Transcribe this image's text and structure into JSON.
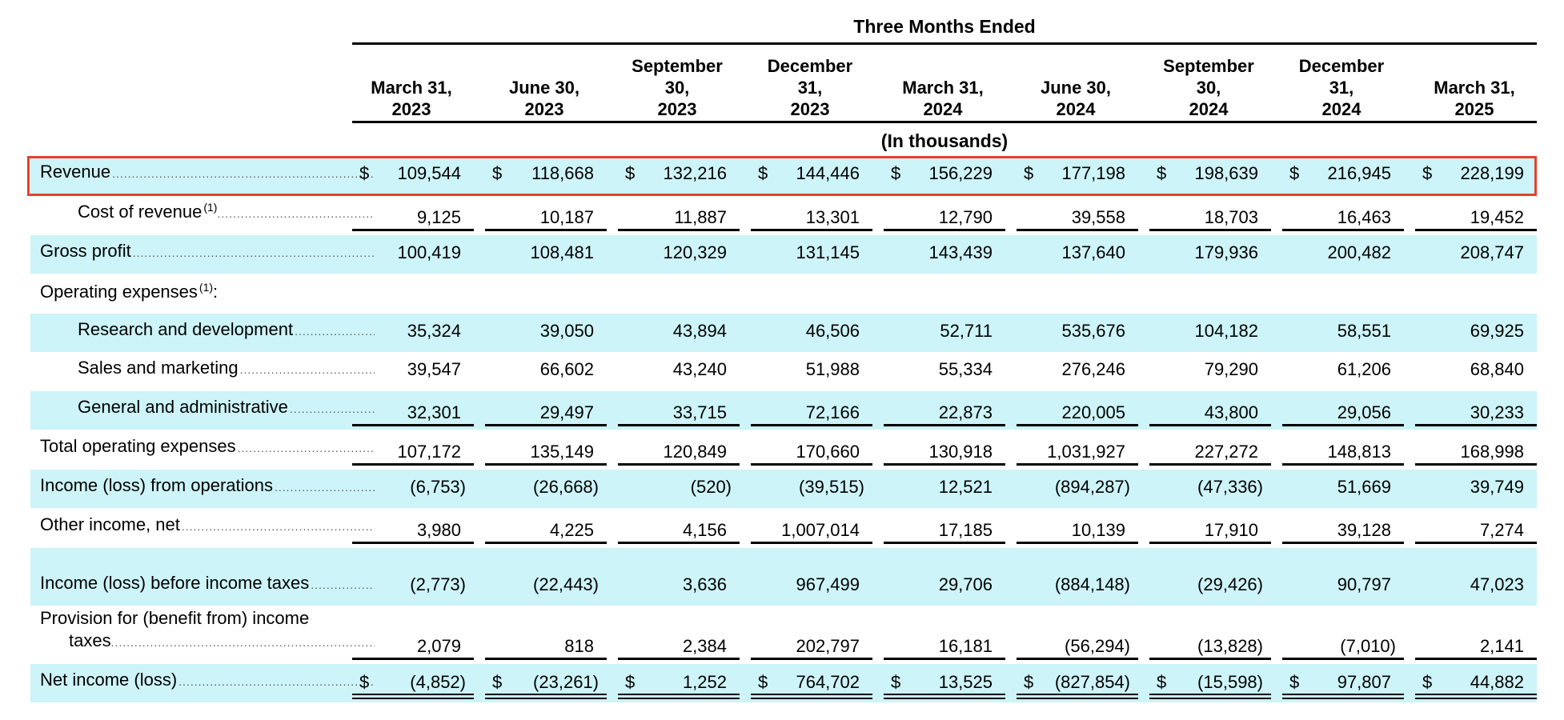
{
  "header": {
    "period_label": "Three Months Ended",
    "units_label": "(In thousands)",
    "columns": [
      "March 31,\n2023",
      "June 30,\n2023",
      "September\n30,\n2023",
      "December\n31,\n2023",
      "March 31,\n2024",
      "June 30,\n2024",
      "September\n30,\n2024",
      "December\n31,\n2024",
      "March 31,\n2025"
    ]
  },
  "rows": [
    {
      "label": "Revenue",
      "footnote": "",
      "indent": false,
      "dollar": true,
      "values": [
        "109,544",
        "118,668",
        "132,216",
        "144,446",
        "156,229",
        "177,198",
        "198,639",
        "216,945",
        "228,199"
      ]
    },
    {
      "label": "Cost of revenue",
      "footnote": "(1)",
      "indent": true,
      "dollar": false,
      "values": [
        "9,125",
        "10,187",
        "11,887",
        "13,301",
        "12,790",
        "39,558",
        "18,703",
        "16,463",
        "19,452"
      ]
    },
    {
      "label": "Gross profit",
      "footnote": "",
      "indent": false,
      "dollar": false,
      "values": [
        "100,419",
        "108,481",
        "120,329",
        "131,145",
        "143,439",
        "137,640",
        "179,936",
        "200,482",
        "208,747"
      ]
    },
    {
      "label": "Operating expenses",
      "footnote": "(1)",
      "suffix": ":",
      "indent": false,
      "dollar": false,
      "values": []
    },
    {
      "label": "Research and development",
      "footnote": "",
      "indent": true,
      "dollar": false,
      "values": [
        "35,324",
        "39,050",
        "43,894",
        "46,506",
        "52,711",
        "535,676",
        "104,182",
        "58,551",
        "69,925"
      ]
    },
    {
      "label": "Sales and marketing",
      "footnote": "",
      "indent": true,
      "dollar": false,
      "values": [
        "39,547",
        "66,602",
        "43,240",
        "51,988",
        "55,334",
        "276,246",
        "79,290",
        "61,206",
        "68,840"
      ]
    },
    {
      "label": "General and administrative",
      "footnote": "",
      "indent": true,
      "dollar": false,
      "values": [
        "32,301",
        "29,497",
        "33,715",
        "72,166",
        "22,873",
        "220,005",
        "43,800",
        "29,056",
        "30,233"
      ]
    },
    {
      "label": "Total operating expenses",
      "footnote": "",
      "indent": false,
      "dollar": false,
      "values": [
        "107,172",
        "135,149",
        "120,849",
        "170,660",
        "130,918",
        "1,031,927",
        "227,272",
        "148,813",
        "168,998"
      ]
    },
    {
      "label": "Income (loss) from operations",
      "footnote": "",
      "indent": false,
      "dollar": false,
      "values": [
        "(6,753)",
        "(26,668)",
        "(520)",
        "(39,515)",
        "12,521",
        "(894,287)",
        "(47,336)",
        "51,669",
        "39,749"
      ]
    },
    {
      "label": "Other income, net",
      "footnote": "",
      "indent": false,
      "dollar": false,
      "values": [
        "3,980",
        "4,225",
        "4,156",
        "1,007,014",
        "17,185",
        "10,139",
        "17,910",
        "39,128",
        "7,274"
      ]
    },
    {
      "label": "Income (loss) before income taxes",
      "footnote": "",
      "indent": false,
      "dollar": false,
      "values": [
        "(2,773)",
        "(22,443)",
        "3,636",
        "967,499",
        "29,706",
        "(884,148)",
        "(29,426)",
        "90,797",
        "47,023"
      ]
    },
    {
      "label": "Provision for (benefit from) income",
      "label2": "taxes",
      "footnote": "",
      "indent": false,
      "dollar": false,
      "values": [
        "2,079",
        "818",
        "2,384",
        "202,797",
        "16,181",
        "(56,294)",
        "(13,828)",
        "(7,010)",
        "2,141"
      ]
    },
    {
      "label": "Net income (loss)",
      "footnote": "",
      "indent": false,
      "dollar": true,
      "values": [
        "(4,852)",
        "(23,261)",
        "1,252",
        "764,702",
        "13,525",
        "(827,854)",
        "(15,598)",
        "97,807",
        "44,882"
      ]
    }
  ],
  "colors": {
    "shade": "#cdf4f8",
    "highlight_border": "#e5412d"
  }
}
